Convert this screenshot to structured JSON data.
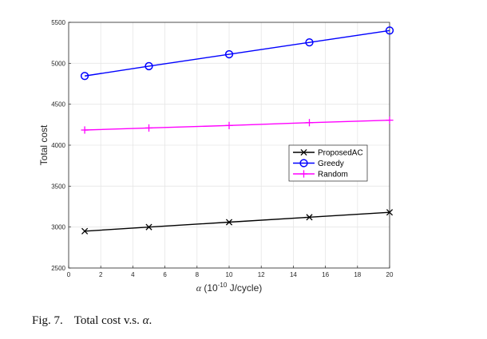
{
  "chart_data": {
    "type": "line",
    "title": "",
    "x": [
      1,
      5,
      10,
      15,
      20
    ],
    "xlim": [
      0,
      20
    ],
    "ylim": [
      2500,
      5500
    ],
    "xticks": [
      "0",
      "2",
      "4",
      "6",
      "8",
      "10",
      "12",
      "14",
      "16",
      "18",
      "20"
    ],
    "yticks": [
      "2500",
      "3000",
      "3500",
      "4000",
      "4500",
      "5000",
      "5500"
    ],
    "xlabel_symbol": "α",
    "xlabel_text": "(10",
    "xlabel_exp": "-10",
    "xlabel_unit": " J/cycle)",
    "ylabel": "Total cost",
    "grid": true,
    "legend_position": "right-middle",
    "series": [
      {
        "name": "ProposedAC",
        "color": "#000000",
        "marker": "x",
        "values": [
          2950,
          3000,
          3060,
          3120,
          3180
        ]
      },
      {
        "name": "Greedy",
        "color": "#0000ff",
        "marker": "o",
        "values": [
          4845,
          4965,
          5110,
          5255,
          5400
        ]
      },
      {
        "name": "Random",
        "color": "#ff00ff",
        "marker": "+",
        "values": [
          4185,
          4210,
          4240,
          4275,
          4305
        ]
      }
    ]
  },
  "caption": {
    "number": "Fig. 7.",
    "text": "Total cost v.s. ",
    "symbol": "α",
    "end": "."
  }
}
